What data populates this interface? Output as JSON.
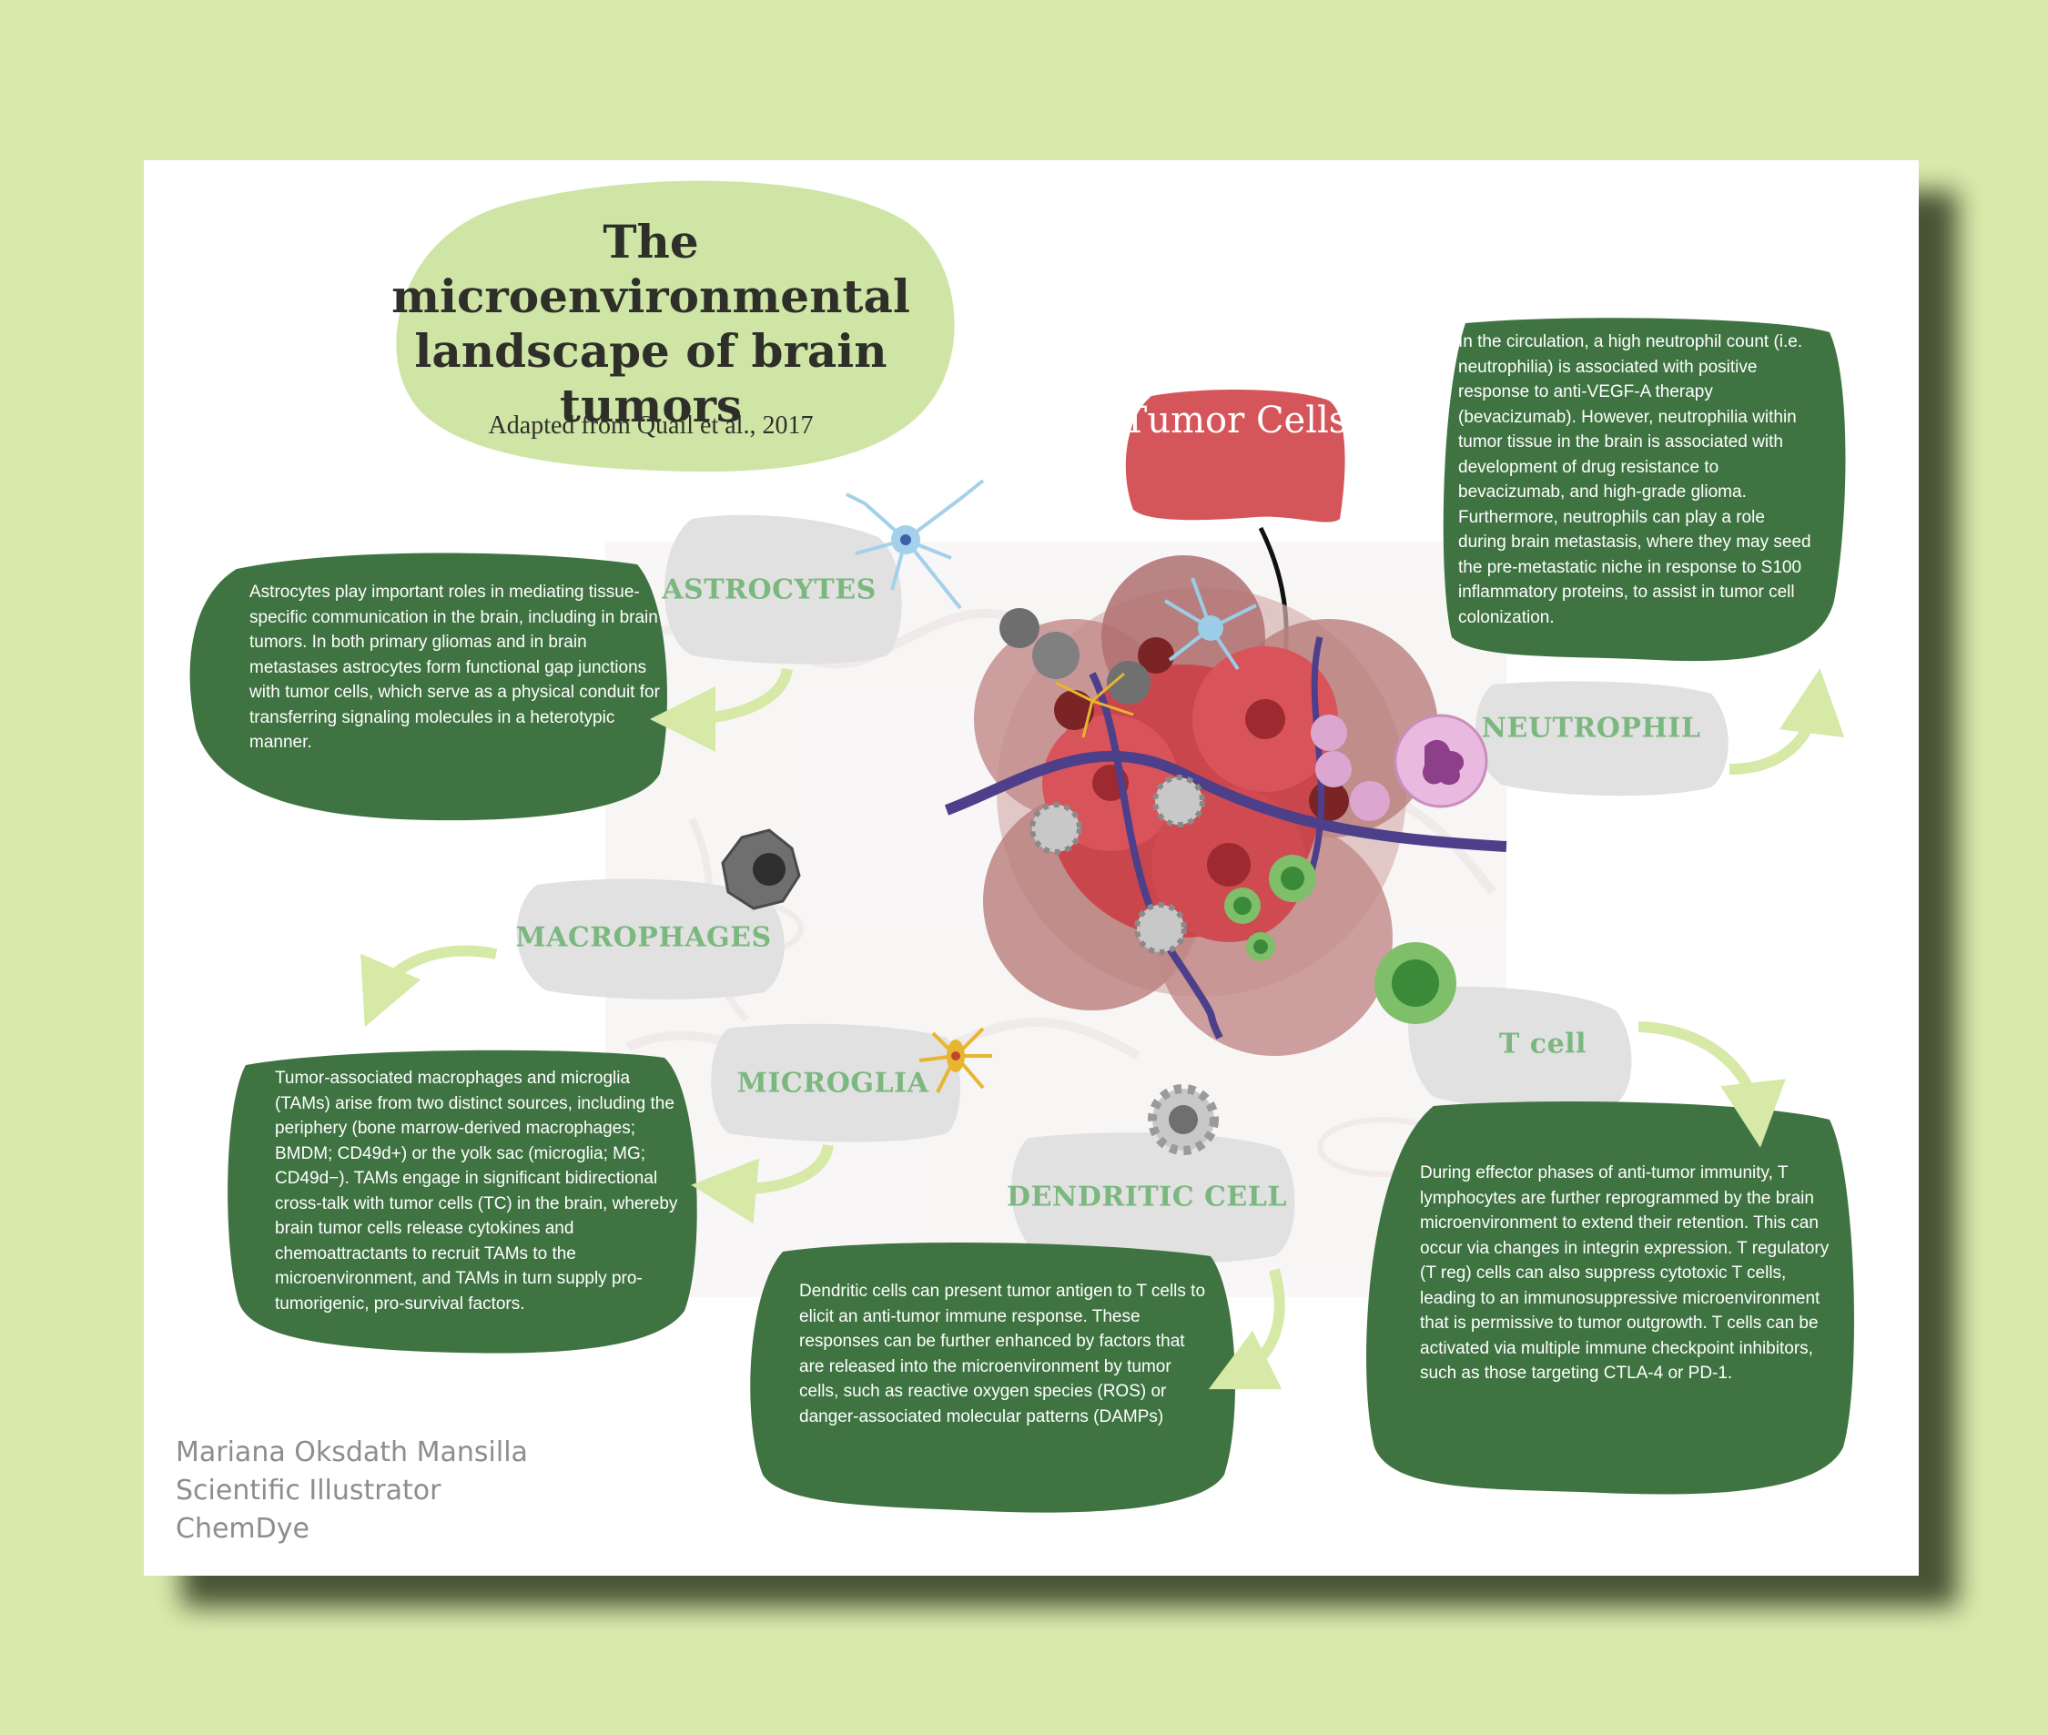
{
  "title": "The microenvironmental landscape of brain tumors",
  "subtitle": "Adapted from Quail et al., 2017",
  "tumor_label": "Tumor Cells",
  "labels": {
    "astrocytes": "ASTROCYTES",
    "neutrophil": "NEUTROPHIL",
    "macrophages": "MACROPHAGES",
    "microglia": "MICROGLIA",
    "t_cell": "T cell",
    "dendritic_cell": "DENDRITIC CELL"
  },
  "texts": {
    "astrocytes": "Astrocytes play important roles in mediating tissue-specific communication in the brain, including in brain tumors. In both primary gliomas and in brain metastases astrocytes form functional gap junctions with tumor cells, which serve as a physical conduit for transferring signaling molecules in a heterotypic manner.",
    "neutrophil": "In the circulation, a high neutrophil count (i.e. neutrophilia) is associated with positive response to anti-VEGF-A therapy (bevacizumab). However, neutrophilia within tumor tissue in the brain is associated with development of drug resistance to bevacizumab, and high-grade glioma. Furthermore, neutrophils can play a role during brain metastasis, where they may seed the pre-metastatic niche in response to S100 inflammatory proteins, to assist in tumor cell colonization.",
    "macrophages": "Tumor-associated macrophages and microglia (TAMs) arise from two distinct sources, including the periphery (bone marrow-derived macrophages; BMDM; CD49d+) or the yolk sac (microglia; MG; CD49d−). TAMs engage in significant bidirectional cross-talk with tumor cells (TC) in the brain, whereby brain tumor cells release cytokines and chemoattractants to recruit TAMs to the microenvironment, and TAMs in turn supply pro-tumorigenic, pro-survival factors.",
    "dendritic": "Dendritic cells can present tumor antigen to T cells to elicit an anti-tumor immune response. These responses can be further enhanced by factors that are released into the microenvironment by tumor cells, such as reactive oxygen species (ROS) or danger-associated molecular patterns (DAMPs)",
    "t_cell": "During effector phases of anti-tumor immunity, T lymphocytes are further reprogrammed by the brain microenvironment to extend their retention. This can occur via changes in integrin expression. T regulatory (T reg) cells can also suppress cytotoxic T cells, leading to an immunosuppressive microenvironment that is permissive to tumor outgrowth. T cells can be activated via multiple immune checkpoint inhibitors, such as those targeting CTLA-4 or PD-1."
  },
  "credits": {
    "name": "Mariana Oksdath Mansilla",
    "role": "Scientific Illustrator",
    "org": "ChemDye"
  },
  "colors": {
    "background": "#d8e9ab",
    "card": "#ffffff",
    "text_box": "#3f7442",
    "title_blob": "#cfe5a6",
    "label_blob": "#e1e1e1",
    "label_text": "#7bb87f",
    "tumor_label_blob": "#d5565a",
    "arrow": "#d6e9a6"
  },
  "icons": {
    "astrocyte": "astrocyte-icon",
    "neutrophil": "neutrophil-icon",
    "macrophage": "macrophage-icon",
    "microglia": "microglia-icon",
    "t_cell": "t-cell-icon",
    "dendritic_cell": "dendritic-cell-icon",
    "tumor": "tumor-mass-illustration"
  }
}
